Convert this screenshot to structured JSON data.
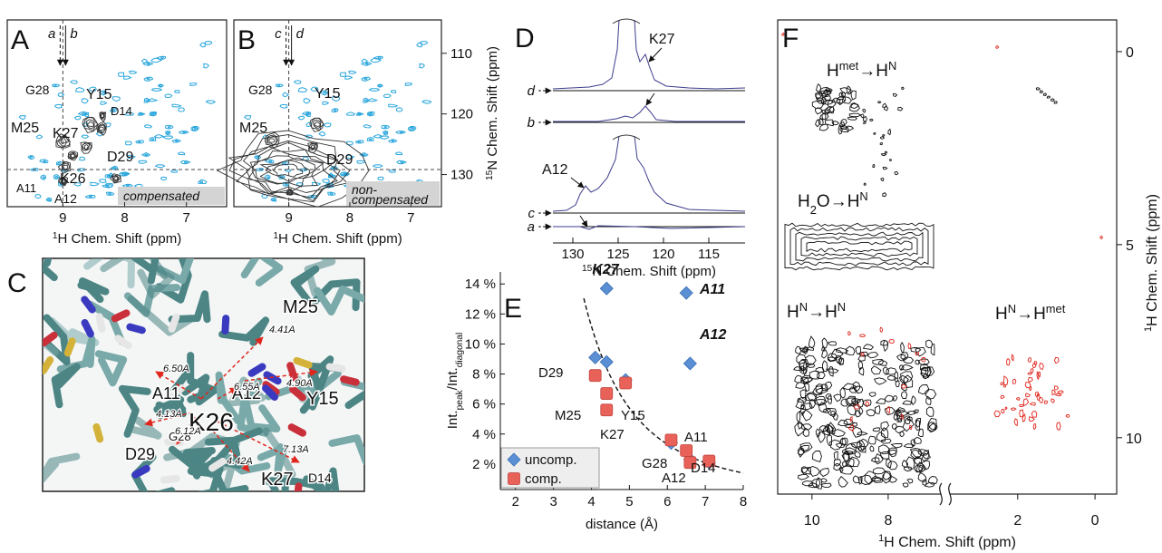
{
  "panels": {
    "A": {
      "letter": "A",
      "markers": [
        "a",
        "b"
      ],
      "peaks": [
        "G28",
        "Y15",
        "D14",
        "M25",
        "K27",
        "D29",
        "K26",
        "A11",
        "A12"
      ],
      "note": [
        "compensated"
      ],
      "xlim": [
        9.9,
        6.35
      ],
      "xticks": [
        9,
        8,
        7
      ],
      "xlabel": [
        "1",
        "H Chem. Shift (ppm)"
      ]
    },
    "B": {
      "letter": "B",
      "markers": [
        "c",
        "d"
      ],
      "peaks": [
        "G28",
        "Y15",
        "M25",
        "D29"
      ],
      "note": [
        "non-",
        "compensated"
      ],
      "xlim": [
        9.9,
        6.5
      ],
      "xticks": [
        9,
        8,
        7
      ],
      "xlabel": [
        "1",
        "H Chem. Shift (ppm)"
      ],
      "ylim": [
        104.5,
        135.3
      ],
      "yticks": [
        110,
        120,
        130
      ],
      "ylabel": [
        "15",
        "N Chem. Shift (ppm)"
      ]
    },
    "C": {
      "letter": "C",
      "residues": [
        "M25",
        "A11",
        "K26",
        "A12",
        "Y15",
        "D29",
        "G28",
        "K27",
        "D14"
      ],
      "distances": [
        "4.41A",
        "6.50A",
        "6.55A",
        "4.90A",
        "4.13A",
        "6.12A",
        "4.42A",
        "7.13A"
      ]
    },
    "D": {
      "letter": "D",
      "traces": [
        "d",
        "b",
        "c",
        "a"
      ],
      "peaks": [
        "K27",
        "A12"
      ],
      "xlim": [
        132.2,
        111.0
      ],
      "xticks": [
        130,
        125,
        120,
        115
      ],
      "xlabel": [
        "15",
        "N Chem. Shift (ppm)"
      ]
    },
    "F": {
      "letter": "F",
      "labels": [
        [
          "H",
          "met",
          "→H",
          "N"
        ],
        [
          "H",
          "2",
          "O→H",
          "N"
        ],
        [
          "H",
          "N",
          "→H",
          "N"
        ],
        [
          "H",
          "N",
          "→H",
          "met"
        ]
      ],
      "xlim": [
        10.9,
        -0.56
      ],
      "xbreak": [
        6.57,
        3.8
      ],
      "xticks": [
        10,
        8,
        2,
        0
      ],
      "ylim": [
        -0.82,
        11.46
      ],
      "yticks": [
        0,
        5,
        10
      ],
      "xlabel": [
        "1",
        "H Chem. Shift (ppm)"
      ],
      "ylabel": [
        "1",
        "H Chem. Shift (ppm)"
      ]
    }
  },
  "chart_data": {
    "type": "scatter",
    "letter": "E",
    "xlabel": "distance (Å)",
    "ylabel": [
      "Int.",
      "peak",
      "/Int.",
      "diagonal"
    ],
    "xlim": [
      1.6,
      8
    ],
    "ylim": [
      0.3,
      14.8
    ],
    "xticks": [
      2,
      3,
      4,
      5,
      6,
      7,
      8
    ],
    "yticks": [
      {
        "value": 2,
        "label": "2 %"
      },
      {
        "value": 4,
        "label": "4 %"
      },
      {
        "value": 6,
        "label": "6 %"
      },
      {
        "value": 8,
        "label": "8 %"
      },
      {
        "value": 10,
        "label": "10 %"
      },
      {
        "value": 12,
        "label": "12 %"
      },
      {
        "value": 14,
        "label": "14 %"
      }
    ],
    "series": [
      {
        "name": "uncomp.",
        "color": "#5b8fd4",
        "marker": "diamond",
        "x": [
          4.4,
          6.5,
          6.6,
          4.1,
          4.4,
          4.9,
          6.1,
          6.6,
          7.1
        ],
        "values": [
          13.7,
          13.4,
          8.7,
          9.1,
          8.8,
          7.6,
          3.4,
          2.3,
          2.1
        ]
      },
      {
        "name": "comp.",
        "color": "#e8625a",
        "marker": "square",
        "x": [
          4.1,
          4.4,
          4.4,
          4.9,
          6.1,
          6.5,
          6.6,
          7.1
        ],
        "values": [
          7.9,
          6.7,
          5.6,
          7.4,
          3.6,
          2.9,
          2.1,
          2.2
        ]
      }
    ],
    "annotations": [
      "K27",
      "A11",
      "A12",
      "D29",
      "M25",
      "Y15",
      "K27",
      "A11",
      "G28",
      "A12",
      "D14"
    ]
  }
}
